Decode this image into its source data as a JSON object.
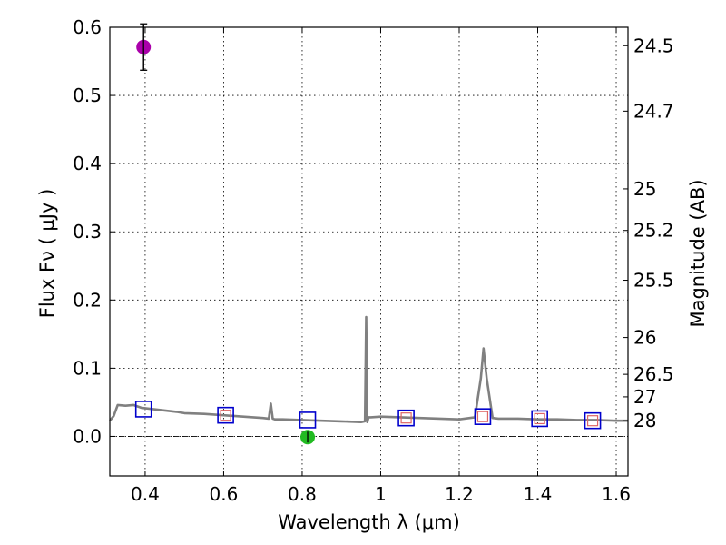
{
  "chart_data": {
    "type": "scatter",
    "xlabel": "Wavelength  λ (μm)",
    "ylabel": "Flux  Fν  ( μJy )",
    "ylabel_right": "Magnitude (AB)",
    "xlim": [
      0.31,
      1.63
    ],
    "ylim": [
      -0.058,
      0.6
    ],
    "grid": true,
    "x_ticks": [
      {
        "value": 0.4,
        "label": "0.4"
      },
      {
        "value": 0.6,
        "label": "0.6"
      },
      {
        "value": 0.8,
        "label": "0.8"
      },
      {
        "value": 1.0,
        "label": "1"
      },
      {
        "value": 1.2,
        "label": "1.2"
      },
      {
        "value": 1.4,
        "label": "1.4"
      },
      {
        "value": 1.6,
        "label": "1.6"
      }
    ],
    "y_ticks": [
      {
        "value": 0.0,
        "label": "0.0"
      },
      {
        "value": 0.1,
        "label": "0.1"
      },
      {
        "value": 0.2,
        "label": "0.2"
      },
      {
        "value": 0.3,
        "label": "0.3"
      },
      {
        "value": 0.4,
        "label": "0.4"
      },
      {
        "value": 0.5,
        "label": "0.5"
      },
      {
        "value": 0.6,
        "label": "0.6"
      }
    ],
    "mag_ticks": [
      {
        "value": 0.573,
        "label": "24.5"
      },
      {
        "value": 0.477,
        "label": "24.7"
      },
      {
        "value": 0.363,
        "label": "25"
      },
      {
        "value": 0.302,
        "label": "25.2"
      },
      {
        "value": 0.229,
        "label": "25.5"
      },
      {
        "value": 0.145,
        "label": "26"
      },
      {
        "value": 0.091,
        "label": "26.5"
      },
      {
        "value": 0.058,
        "label": "27"
      },
      {
        "value": 0.023,
        "label": "28"
      }
    ],
    "series": [
      {
        "name": "model spectrum",
        "kind": "line",
        "color": "#808080",
        "x": [
          0.31,
          0.32,
          0.33,
          0.35,
          0.37,
          0.39,
          0.42,
          0.45,
          0.48,
          0.5,
          0.55,
          0.6,
          0.65,
          0.7,
          0.715,
          0.72,
          0.725,
          0.73,
          0.75,
          0.8,
          0.85,
          0.9,
          0.95,
          0.96,
          0.963,
          0.966,
          0.969,
          0.975,
          1.0,
          1.05,
          1.1,
          1.15,
          1.2,
          1.24,
          1.255,
          1.262,
          1.27,
          1.285,
          1.3,
          1.35,
          1.4,
          1.45,
          1.5,
          1.55,
          1.6,
          1.63
        ],
        "y": [
          0.023,
          0.03,
          0.046,
          0.045,
          0.046,
          0.042,
          0.04,
          0.038,
          0.036,
          0.034,
          0.033,
          0.031,
          0.029,
          0.027,
          0.026,
          0.048,
          0.026,
          0.025,
          0.025,
          0.024,
          0.023,
          0.022,
          0.021,
          0.022,
          0.175,
          0.021,
          0.028,
          0.028,
          0.029,
          0.028,
          0.027,
          0.026,
          0.025,
          0.028,
          0.085,
          0.129,
          0.085,
          0.027,
          0.026,
          0.026,
          0.025,
          0.025,
          0.024,
          0.024,
          0.023,
          0.023
        ]
      },
      {
        "name": "model photometry",
        "kind": "open-square",
        "color": "#0000cc",
        "x": [
          0.396,
          0.605,
          0.814,
          1.065,
          1.26,
          1.405,
          1.54
        ],
        "y": [
          0.04,
          0.031,
          0.024,
          0.027,
          0.029,
          0.026,
          0.023
        ]
      },
      {
        "name": "observed photometry",
        "kind": "small-square",
        "color": "#dd6666",
        "x": [
          0.605,
          1.065,
          1.26,
          1.405,
          1.54
        ],
        "y": [
          0.031,
          0.027,
          0.029,
          0.026,
          0.023
        ]
      },
      {
        "name": "detection",
        "kind": "circle",
        "color": "#aa00aa",
        "x": [
          0.396
        ],
        "y": [
          0.571
        ],
        "err": [
          0.034
        ]
      },
      {
        "name": "non-detection",
        "kind": "circle",
        "color": "#22bb22",
        "x": [
          0.814
        ],
        "y": [
          -0.001
        ],
        "err": [
          0.008
        ]
      }
    ],
    "reference_line": {
      "y": 0.0,
      "style": "dash-dot"
    }
  }
}
